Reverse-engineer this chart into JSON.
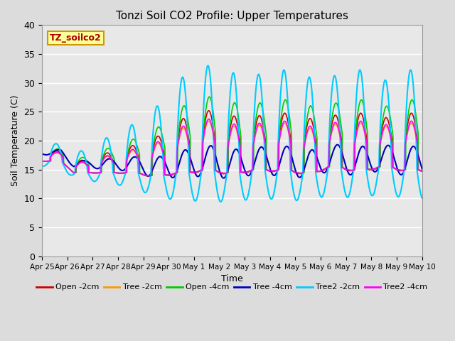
{
  "title": "Tonzi Soil CO2 Profile: Upper Temperatures",
  "xlabel": "Time",
  "ylabel": "Soil Temperature (C)",
  "ylim": [
    0,
    40
  ],
  "yticks": [
    0,
    5,
    10,
    15,
    20,
    25,
    30,
    35,
    40
  ],
  "background_color": "#dcdcdc",
  "plot_bg_color": "#e8e8e8",
  "series_colors": [
    "#cc0000",
    "#ff9900",
    "#00cc00",
    "#0000bb",
    "#00ccff",
    "#ff00ff"
  ],
  "series_labels": [
    "Open -2cm",
    "Tree -2cm",
    "Open -4cm",
    "Tree -4cm",
    "Tree2 -2cm",
    "Tree2 -4cm"
  ],
  "watermark_text": "TZ_soilco2",
  "watermark_color": "#aa0000",
  "watermark_bg": "#ffff99",
  "n_days": 15,
  "xtick_labels": [
    "Apr 25",
    "Apr 26",
    "Apr 27",
    "Apr 28",
    "Apr 29",
    "Apr 30",
    "May 1",
    "May 2",
    "May 3",
    "May 4",
    "May 5",
    "May 6",
    "May 7",
    "May 8",
    "May 9",
    "May 10"
  ]
}
